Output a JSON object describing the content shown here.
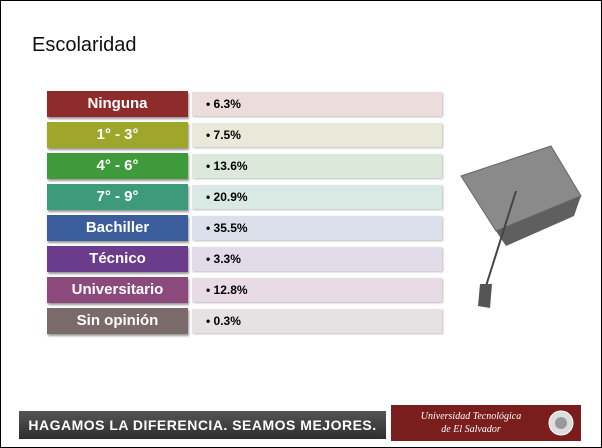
{
  "title": "Escolaridad",
  "rows": [
    {
      "label": "Ninguna",
      "value": "6.3%",
      "color": "#8e2b2b",
      "tint": "#ecdcdc"
    },
    {
      "label": "1° - 3°",
      "value": "7.5%",
      "color": "#9ea62c",
      "tint": "#e8e9d8"
    },
    {
      "label": "4° - 6°",
      "value": "13.6%",
      "color": "#3e9a3a",
      "tint": "#dce9da"
    },
    {
      "label": "7° - 9°",
      "value": "20.9%",
      "color": "#3d9b7c",
      "tint": "#d9e9e3"
    },
    {
      "label": "Bachiller",
      "value": "35.5%",
      "color": "#3b5d9b",
      "tint": "#dbe0ea"
    },
    {
      "label": "Técnico",
      "value": "3.3%",
      "color": "#6b3b8c",
      "tint": "#e2dbe9"
    },
    {
      "label": "Universitario",
      "value": "12.8%",
      "color": "#8c4a7c",
      "tint": "#e9dbe5"
    },
    {
      "label": "Sin opinión",
      "value": "0.3%",
      "color": "#7b6a6a",
      "tint": "#e6e2e2"
    }
  ],
  "footer": {
    "slogan": "HAGAMOS LA DIFERENCIA. SEAMOS MEJORES.",
    "logo_line1": "Universidad Tecnológica",
    "logo_line2": "de El Salvador"
  }
}
